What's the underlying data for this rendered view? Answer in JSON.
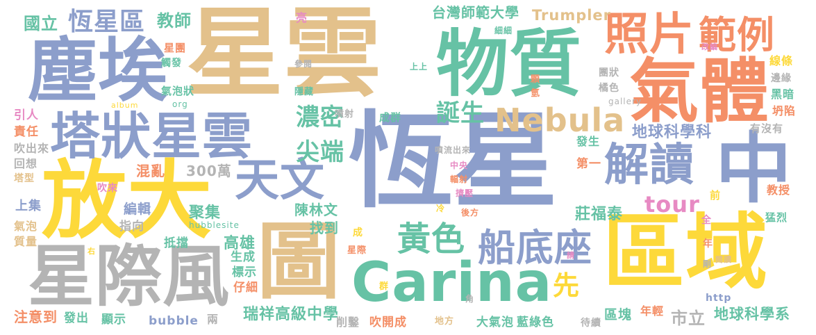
{
  "palette": {
    "blue": "#8c9ecb",
    "tan": "#e3c18b",
    "green": "#66c2a5",
    "orange": "#f48f67",
    "yellow": "#fdd93a",
    "gray": "#b4b4b4",
    "pink": "#e78ac3",
    "lime": "#a6d854"
  },
  "words": [
    {
      "text": "星雲",
      "color": "#e3c18b"
    },
    {
      "text": "恆星",
      "color": "#8c9ecb"
    },
    {
      "text": "放大",
      "color": "#fdd93a"
    },
    {
      "text": "區域",
      "color": "#fdd93a"
    },
    {
      "text": "物質",
      "color": "#66c2a5"
    },
    {
      "text": "塵埃",
      "color": "#8c9ecb"
    },
    {
      "text": "氣體",
      "color": "#f48f67"
    },
    {
      "text": "中",
      "color": "#8c9ecb"
    },
    {
      "text": "圖",
      "color": "#e3c18b"
    },
    {
      "text": "星際風",
      "color": "#b4b4b4"
    },
    {
      "text": "Carina",
      "color": "#66c2a5"
    },
    {
      "text": "塔狀星雲",
      "color": "#8c9ecb"
    },
    {
      "text": "照片",
      "color": "#f48f67"
    },
    {
      "text": "範例",
      "color": "#f48f67"
    },
    {
      "text": "Nebula",
      "color": "#e3c18b"
    },
    {
      "text": "天文",
      "color": "#8c9ecb"
    },
    {
      "text": "解讀",
      "color": "#8c9ecb"
    },
    {
      "text": "船底座",
      "color": "#8c9ecb"
    },
    {
      "text": "黃色",
      "color": "#66c2a5"
    },
    {
      "text": "恆星區",
      "color": "#8c9ecb"
    },
    {
      "text": "濃密",
      "color": "#66c2a5"
    },
    {
      "text": "尖端",
      "color": "#66c2a5"
    },
    {
      "text": "誕生",
      "color": "#66c2a5"
    },
    {
      "text": "tour",
      "color": "#e78ac3"
    },
    {
      "text": "先",
      "color": "#fdd93a"
    },
    {
      "text": "國立",
      "color": "#66c2a5"
    },
    {
      "text": "教師",
      "color": "#66c2a5"
    },
    {
      "text": "台灣師範大學",
      "color": "#66c2a5"
    },
    {
      "text": "Trumpler",
      "color": "#e3c18b"
    },
    {
      "text": "地球科學科",
      "color": "#8c9ecb"
    },
    {
      "text": "莊福泰",
      "color": "#66c2a5"
    },
    {
      "text": "瑞祥高級中學",
      "color": "#66c2a5"
    },
    {
      "text": "市立",
      "color": "#b4b4b4"
    },
    {
      "text": "地球科學系",
      "color": "#66c2a5"
    },
    {
      "text": "高雄",
      "color": "#66c2a5"
    },
    {
      "text": "聚集",
      "color": "#66c2a5"
    },
    {
      "text": "陳林文",
      "color": "#66c2a5"
    },
    {
      "text": "找到",
      "color": "#66c2a5"
    },
    {
      "text": "混亂",
      "color": "#f48f67"
    },
    {
      "text": "300萬",
      "color": "#b4b4b4"
    },
    {
      "text": "編輯",
      "color": "#8c9ecb"
    },
    {
      "text": "指向",
      "color": "#b4b4b4"
    },
    {
      "text": "抵擋",
      "color": "#66c2a5"
    },
    {
      "text": "生成",
      "color": "#66c2a5"
    },
    {
      "text": "標示",
      "color": "#66c2a5"
    },
    {
      "text": "仔細",
      "color": "#f48f67"
    },
    {
      "text": "注意到",
      "color": "#f48f67"
    },
    {
      "text": "發出",
      "color": "#66c2a5"
    },
    {
      "text": "顯示",
      "color": "#66c2a5"
    },
    {
      "text": "bubble",
      "color": "#8c9ecb"
    },
    {
      "text": "兩",
      "color": "#b4b4b4"
    },
    {
      "text": "削鑿",
      "color": "#b4b4b4"
    },
    {
      "text": "吹開成",
      "color": "#f48f67"
    },
    {
      "text": "地方",
      "color": "#e3c18b"
    },
    {
      "text": "大氣泡",
      "color": "#66c2a5"
    },
    {
      "text": "藍綠色",
      "color": "#66c2a5"
    },
    {
      "text": "待續",
      "color": "#b4b4b4"
    },
    {
      "text": "區塊",
      "color": "#66c2a5"
    },
    {
      "text": "年輕",
      "color": "#f48f67"
    },
    {
      "text": "http",
      "color": "#8c9ecb"
    },
    {
      "text": "上集",
      "color": "#8c9ecb"
    },
    {
      "text": "氣泡",
      "color": "#e3c18b"
    },
    {
      "text": "質量",
      "color": "#e3c18b"
    },
    {
      "text": "塔型",
      "color": "#e3c18b"
    },
    {
      "text": "回想",
      "color": "#b4b4b4"
    },
    {
      "text": "吹出來",
      "color": "#b4b4b4"
    },
    {
      "text": "責任",
      "color": "#f48f67"
    },
    {
      "text": "引人",
      "color": "#e78ac3"
    },
    {
      "text": "吹來",
      "color": "#e78ac3"
    },
    {
      "text": "星團",
      "color": "#f48f67"
    },
    {
      "text": "觸發",
      "color": "#66c2a5"
    },
    {
      "text": "氣泡狀",
      "color": "#66c2a5"
    },
    {
      "text": "album",
      "color": "#fdd93a"
    },
    {
      "text": "org",
      "color": "#66c2a5"
    },
    {
      "text": "參閱",
      "color": "#b4b4b4"
    },
    {
      "text": "隱藏",
      "color": "#66c2a5"
    },
    {
      "text": "噴射",
      "color": "#b4b4b4"
    },
    {
      "text": "成群",
      "color": "#66c2a5"
    },
    {
      "text": "亮",
      "color": "#e78ac3"
    },
    {
      "text": "細細",
      "color": "#66c2a5"
    },
    {
      "text": "上上",
      "color": "#66c2a5"
    },
    {
      "text": "顆",
      "color": "#f48f67"
    },
    {
      "text": "氫",
      "color": "#f48f67"
    },
    {
      "text": "gallery",
      "color": "#b4b4b4"
    },
    {
      "text": "團狀",
      "color": "#b4b4b4"
    },
    {
      "text": "橘色",
      "color": "#b4b4b4"
    },
    {
      "text": "線條",
      "color": "#fdd93a"
    },
    {
      "text": "邊緣",
      "color": "#b4b4b4"
    },
    {
      "text": "黑暗",
      "color": "#66c2a5"
    },
    {
      "text": "坍陷",
      "color": "#f48f67"
    },
    {
      "text": "有沒有",
      "color": "#b4b4b4"
    },
    {
      "text": "改編",
      "color": "#e78ac3"
    },
    {
      "text": "發生",
      "color": "#66c2a5"
    },
    {
      "text": "第一",
      "color": "#f48f67"
    },
    {
      "text": "噴流出來",
      "color": "#b4b4b4"
    },
    {
      "text": "中央",
      "color": "#e78ac3"
    },
    {
      "text": "輻射",
      "color": "#f48f67"
    },
    {
      "text": "擠壓",
      "color": "#e78ac3"
    },
    {
      "text": "冷",
      "color": "#fdd93a"
    },
    {
      "text": "後方",
      "color": "#f48f67"
    },
    {
      "text": "前",
      "color": "#fdd93a"
    },
    {
      "text": "教授",
      "color": "#f48f67"
    },
    {
      "text": "全",
      "color": "#e78ac3"
    },
    {
      "text": "閱讀",
      "color": "#e3c18b"
    },
    {
      "text": "猛烈",
      "color": "#66c2a5"
    },
    {
      "text": "年",
      "color": "#f48f67"
    },
    {
      "text": "剛",
      "color": "#b4b4b4"
    },
    {
      "text": "請",
      "color": "#e78ac3"
    },
    {
      "text": "角",
      "color": "#b4b4b4"
    },
    {
      "text": "成",
      "color": "#fdd93a"
    },
    {
      "text": "星際",
      "color": "#f48f67"
    },
    {
      "text": "群",
      "color": "#fdd93a"
    },
    {
      "text": "右",
      "color": "#fdd93a"
    },
    {
      "text": "hubblesite",
      "color": "#66c2a5"
    }
  ]
}
